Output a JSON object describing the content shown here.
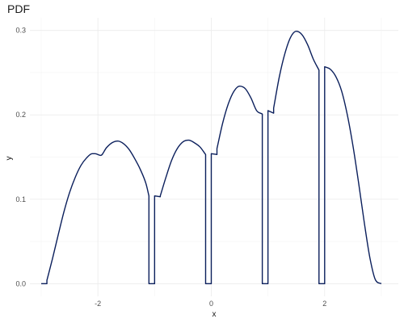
{
  "chart_data": {
    "type": "line",
    "title": "PDF",
    "xlabel": "x",
    "ylabel": "y",
    "xlim": [
      -3.2,
      3.3
    ],
    "ylim": [
      -0.015,
      0.315
    ],
    "x_ticks": [
      -2,
      0,
      2
    ],
    "x_tick_labels": [
      "-2",
      "0",
      "2"
    ],
    "y_ticks": [
      0.0,
      0.1,
      0.2,
      0.3
    ],
    "y_tick_labels": [
      "0.0",
      "0.1",
      "0.2",
      "0.3"
    ],
    "grid": true,
    "legend": "none",
    "line_color": "#0b1f5c",
    "series": [
      {
        "x": [
          -3.0,
          -2.9,
          -2.9,
          -2.8,
          -2.7,
          -2.6,
          -2.5,
          -2.4,
          -2.3,
          -2.2,
          -2.1,
          -2.05,
          -1.95,
          -1.85,
          -1.75,
          -1.65,
          -1.55,
          -1.45,
          -1.35,
          -1.25,
          -1.15,
          -1.1,
          -1.1,
          -1.0,
          -1.0,
          -0.9,
          -0.9,
          -0.8,
          -0.7,
          -0.6,
          -0.5,
          -0.4,
          -0.3,
          -0.2,
          -0.1,
          -0.1,
          0.0,
          0.0,
          0.1,
          0.1,
          0.2,
          0.3,
          0.4,
          0.5,
          0.6,
          0.7,
          0.8,
          0.9,
          0.9,
          1.0,
          1.0,
          1.1,
          1.1,
          1.2,
          1.3,
          1.4,
          1.5,
          1.6,
          1.7,
          1.8,
          1.9,
          1.9,
          2.0,
          2.0,
          2.1,
          2.2,
          2.3,
          2.4,
          2.5,
          2.6,
          2.7,
          2.8,
          2.9,
          3.0
        ],
        "y": [
          0.0,
          0.0,
          0.004,
          0.03,
          0.058,
          0.085,
          0.108,
          0.126,
          0.14,
          0.149,
          0.154,
          0.154,
          0.152,
          0.161,
          0.167,
          0.169,
          0.166,
          0.159,
          0.148,
          0.135,
          0.118,
          0.104,
          0.0,
          0.0,
          0.104,
          0.103,
          0.104,
          0.126,
          0.146,
          0.16,
          0.168,
          0.17,
          0.167,
          0.162,
          0.153,
          0.0,
          0.0,
          0.154,
          0.153,
          0.16,
          0.19,
          0.213,
          0.228,
          0.234,
          0.231,
          0.22,
          0.205,
          0.201,
          0.0,
          0.0,
          0.205,
          0.202,
          0.208,
          0.245,
          0.273,
          0.292,
          0.299,
          0.295,
          0.283,
          0.266,
          0.253,
          0.0,
          0.0,
          0.257,
          0.254,
          0.245,
          0.228,
          0.2,
          0.163,
          0.119,
          0.072,
          0.03,
          0.004,
          0.0
        ]
      }
    ]
  }
}
